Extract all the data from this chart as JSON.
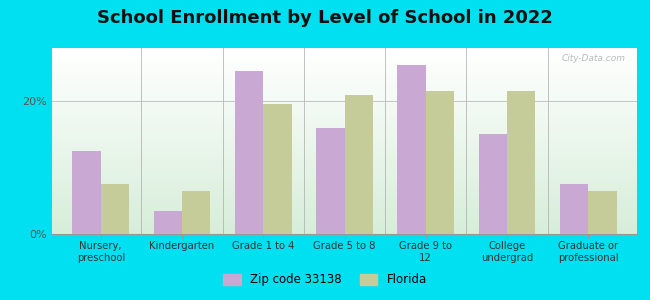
{
  "title": "School Enrollment by Level of School in 2022",
  "categories": [
    "Nursery,\npreschool",
    "Kindergarten",
    "Grade 1 to 4",
    "Grade 5 to 8",
    "Grade 9 to\n12",
    "College\nundergrad",
    "Graduate or\nprofessional"
  ],
  "zip_values": [
    12.5,
    3.5,
    24.5,
    16.0,
    25.5,
    15.0,
    7.5
  ],
  "florida_values": [
    7.5,
    6.5,
    19.5,
    21.0,
    21.5,
    21.5,
    6.5
  ],
  "zip_color": "#c9a8d4",
  "florida_color": "#c5cc99",
  "background_outer": "#00e0f0",
  "ylim": [
    0,
    28
  ],
  "yticks": [
    0,
    20
  ],
  "ytick_labels": [
    "0%",
    "20%"
  ],
  "zip_label": "Zip code 33138",
  "florida_label": "Florida",
  "title_fontsize": 13,
  "watermark": "City-Data.com",
  "bar_width": 0.35,
  "grid_color": "#bbbbbb"
}
